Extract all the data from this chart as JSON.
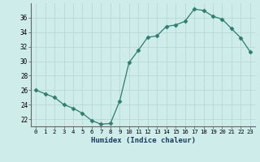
{
  "x": [
    0,
    1,
    2,
    3,
    4,
    5,
    6,
    7,
    8,
    9,
    10,
    11,
    12,
    13,
    14,
    15,
    16,
    17,
    18,
    19,
    20,
    21,
    22,
    23
  ],
  "y": [
    26.0,
    25.5,
    25.0,
    24.0,
    23.5,
    22.8,
    21.8,
    21.3,
    21.4,
    24.5,
    29.8,
    31.5,
    33.3,
    33.5,
    34.8,
    35.0,
    35.5,
    37.2,
    37.0,
    36.2,
    35.8,
    34.5,
    33.2,
    31.3
  ],
  "line_color": "#2e7d6e",
  "marker": "D",
  "markersize": 2.5,
  "bg_color": "#ceecea",
  "grid_color": "#b8d8d4",
  "xlabel": "Humidex (Indice chaleur)",
  "xlim": [
    -0.5,
    23.5
  ],
  "ylim": [
    21.0,
    38.0
  ],
  "yticks": [
    22,
    24,
    26,
    28,
    30,
    32,
    34,
    36
  ],
  "xticks": [
    0,
    1,
    2,
    3,
    4,
    5,
    6,
    7,
    8,
    9,
    10,
    11,
    12,
    13,
    14,
    15,
    16,
    17,
    18,
    19,
    20,
    21,
    22,
    23
  ]
}
